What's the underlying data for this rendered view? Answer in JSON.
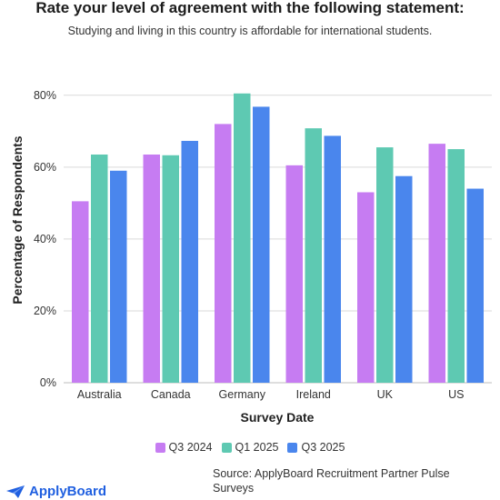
{
  "chart_data": {
    "type": "bar",
    "title": "Rate your level of agreement with the following statement:",
    "subtitle": "Studying and living in this country is affordable for international students.",
    "xlabel": "Survey Date",
    "ylabel": "Percentage of Respondents",
    "categories": [
      "Australia",
      "Canada",
      "Germany",
      "Ireland",
      "UK",
      "US"
    ],
    "ylim": [
      0,
      85
    ],
    "yticks": [
      0,
      20,
      40,
      60,
      80
    ],
    "ytick_labels": [
      "0%",
      "20%",
      "40%",
      "60%",
      "80%"
    ],
    "grid": true,
    "legend_position": "bottom",
    "series": [
      {
        "name": "Q3 2024",
        "color": "#c67cf2",
        "values": [
          50.5,
          63.5,
          72,
          60.5,
          53,
          66.5
        ]
      },
      {
        "name": "Q1 2025",
        "color": "#5ec9b2",
        "values": [
          63.5,
          63.3,
          80.5,
          70.8,
          65.5,
          65
        ]
      },
      {
        "name": "Q3 2025",
        "color": "#4a86ed",
        "values": [
          59,
          67.3,
          76.8,
          68.7,
          57.5,
          54
        ]
      }
    ]
  },
  "footer": {
    "logo_text": "ApplyBoard",
    "logo_color": "#1f5fe0",
    "source": "Source: ApplyBoard Recruitment Partner Pulse Surveys"
  }
}
